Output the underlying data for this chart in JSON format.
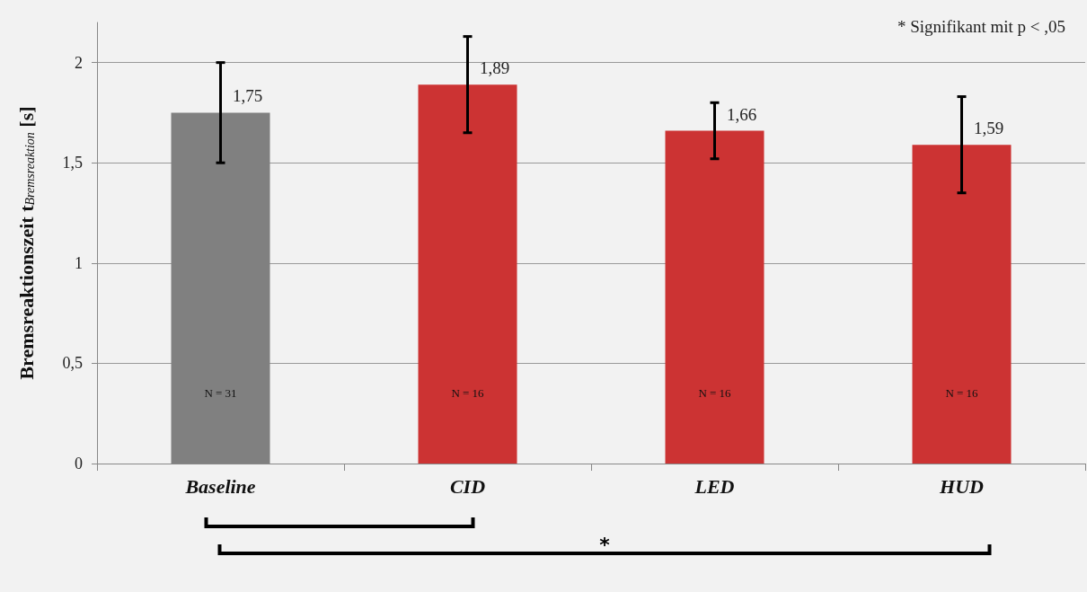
{
  "chart_data": {
    "type": "bar",
    "ylabel": "Bremsreaktionszeit t$_{Bremsreaktion}$ [s]",
    "categories": [
      "Baseline",
      "CID",
      "LED",
      "HUD"
    ],
    "values": [
      1.75,
      1.89,
      1.66,
      1.59
    ],
    "colors": [
      "#808080",
      "#cc3333",
      "#cc3333",
      "#cc3333"
    ],
    "errors": [
      0.25,
      0.24,
      0.14,
      0.24
    ],
    "value_labels": [
      "1,75",
      "1,89",
      "1,66",
      "1,59"
    ],
    "ylim": [
      0,
      2.2
    ],
    "yticks": [
      0,
      {
        "value": 0.5,
        "label": "0,5"
      },
      1,
      {
        "value": 1.5,
        "label": "1,5"
      },
      2
    ],
    "grid": "y",
    "annotations": [
      "* Signifikant mit p < ,05",
      "*",
      "N = 31",
      "N = 16",
      "N = 16",
      "N = 16"
    ]
  }
}
